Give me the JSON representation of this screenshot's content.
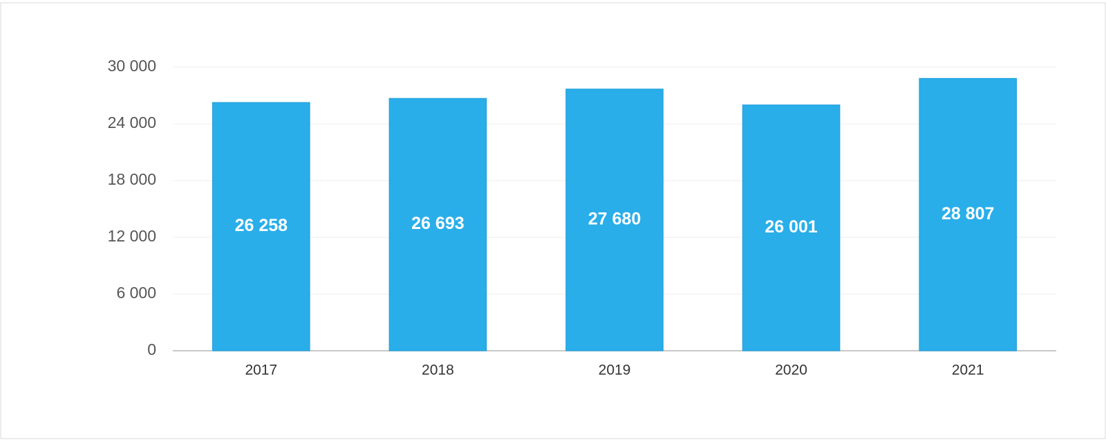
{
  "chart_data": {
    "type": "bar",
    "categories": [
      "2017",
      "2018",
      "2019",
      "2020",
      "2021"
    ],
    "values": [
      26258,
      26693,
      27680,
      26001,
      28807
    ],
    "value_labels": [
      "26 258",
      "26 693",
      "27 680",
      "26 001",
      "28 807"
    ],
    "color": "#29aeea",
    "ylim": [
      0,
      30000
    ],
    "yticks": [
      0,
      {
        "value": 6000,
        "label": "6 000"
      },
      {
        "value": 12000,
        "label": "12 000"
      },
      {
        "value": 18000,
        "label": "18 000"
      },
      {
        "value": 24000,
        "label": "24 000"
      },
      {
        "value": 30000,
        "label": "30 000"
      }
    ],
    "grid": true
  }
}
